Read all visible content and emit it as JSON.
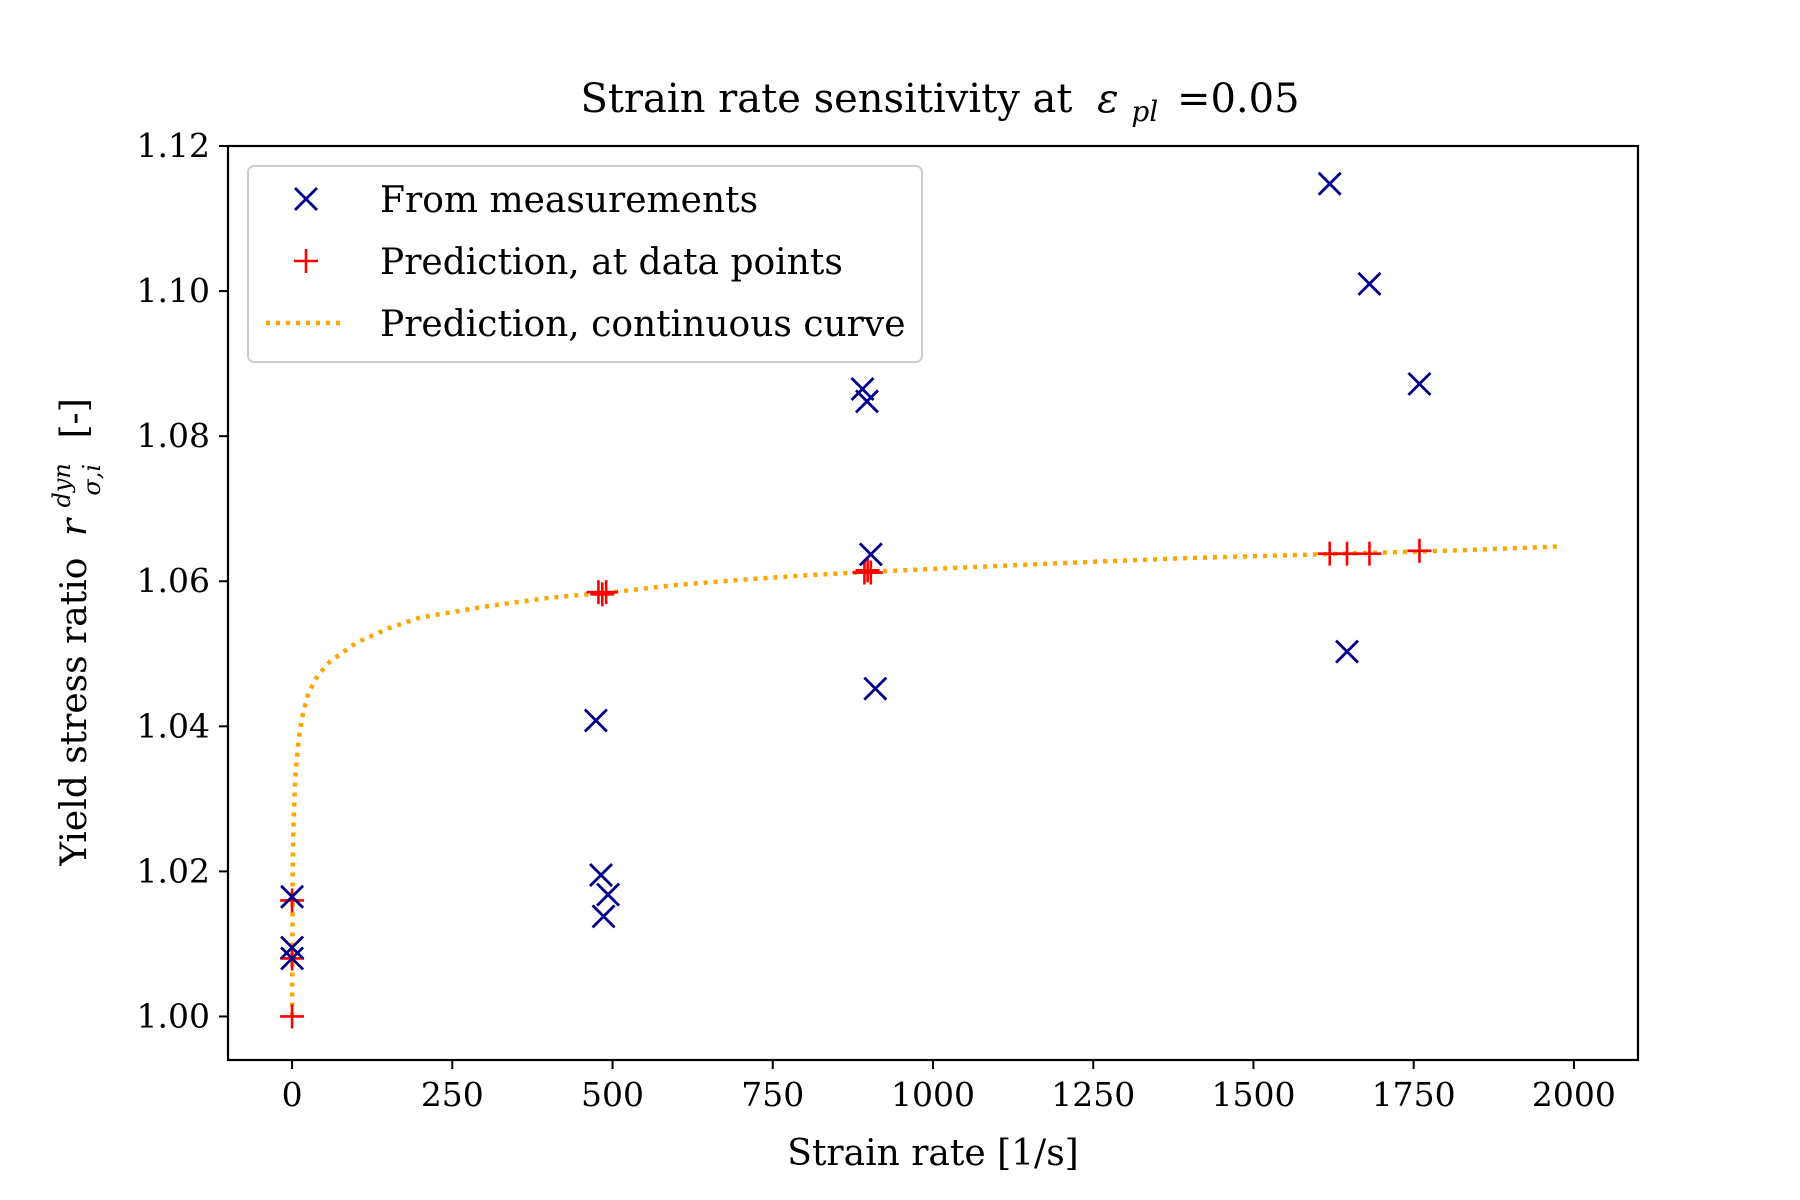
{
  "chart_data": {
    "type": "scatter",
    "title_text": "Strain rate sensitivity at",
    "title_symbol": "ε",
    "title_subscript": "pl",
    "title_value": "=0.05",
    "xlabel": "Strain rate [1/s]",
    "ylabel_text": "Yield stress ratio",
    "ylabel_symbol": "r",
    "ylabel_superscript": "dyn",
    "ylabel_subscript": "σ,i",
    "ylabel_unit": "[-]",
    "xlim": [
      -100,
      2100
    ],
    "ylim": [
      0.994,
      1.12
    ],
    "xticks": [
      0,
      250,
      500,
      750,
      1000,
      1250,
      1500,
      1750,
      2000
    ],
    "xtick_labels": [
      "0",
      "250",
      "500",
      "750",
      "1000",
      "1250",
      "1500",
      "1750",
      "2000"
    ],
    "yticks": [
      1.0,
      1.02,
      1.04,
      1.06,
      1.08,
      1.1,
      1.12
    ],
    "ytick_labels": [
      "1.00",
      "1.02",
      "1.04",
      "1.06",
      "1.08",
      "1.10",
      "1.12"
    ],
    "legend_position": "upper-left",
    "series": [
      {
        "name": "From measurements",
        "marker": "x",
        "color": "#00008b",
        "points": [
          [
            0,
            1.0165
          ],
          [
            0,
            1.0095
          ],
          [
            0,
            1.008
          ],
          [
            474,
            1.0408
          ],
          [
            482,
            1.0195
          ],
          [
            493,
            1.0168
          ],
          [
            486,
            1.0138
          ],
          [
            890,
            1.0865
          ],
          [
            897,
            1.0848
          ],
          [
            903,
            1.0637
          ],
          [
            910,
            1.0452
          ],
          [
            1619,
            1.1148
          ],
          [
            1681,
            1.101
          ],
          [
            1759,
            1.0872
          ],
          [
            1646,
            1.0503
          ]
        ]
      },
      {
        "name": "Prediction, at data points",
        "marker": "+",
        "color": "#ff0000",
        "points": [
          [
            0,
            1.0
          ],
          [
            0,
            1.016
          ],
          [
            0,
            1.008
          ],
          [
            478,
            1.0585
          ],
          [
            484,
            1.0582
          ],
          [
            490,
            1.0585
          ],
          [
            893,
            1.0612
          ],
          [
            898,
            1.0615
          ],
          [
            903,
            1.0612
          ],
          [
            1619,
            1.0638
          ],
          [
            1646,
            1.0638
          ],
          [
            1681,
            1.0638
          ],
          [
            1759,
            1.0642
          ]
        ]
      },
      {
        "name": "Prediction, continuous curve",
        "marker": "dotted-line",
        "color": "#ffa500",
        "points": [
          [
            0,
            1.0
          ],
          [
            1,
            1.02
          ],
          [
            2,
            1.026
          ],
          [
            4,
            1.031
          ],
          [
            6,
            1.034
          ],
          [
            10,
            1.038
          ],
          [
            15,
            1.041
          ],
          [
            25,
            1.0445
          ],
          [
            40,
            1.047
          ],
          [
            60,
            1.049
          ],
          [
            100,
            1.0515
          ],
          [
            150,
            1.0535
          ],
          [
            200,
            1.055
          ],
          [
            300,
            1.0565
          ],
          [
            400,
            1.0577
          ],
          [
            500,
            1.0585
          ],
          [
            600,
            1.0595
          ],
          [
            700,
            1.0602
          ],
          [
            800,
            1.0608
          ],
          [
            900,
            1.0613
          ],
          [
            1000,
            1.0617
          ],
          [
            1200,
            1.0625
          ],
          [
            1400,
            1.0632
          ],
          [
            1600,
            1.0637
          ],
          [
            1800,
            1.0642
          ],
          [
            1980,
            1.0648
          ]
        ]
      }
    ]
  }
}
